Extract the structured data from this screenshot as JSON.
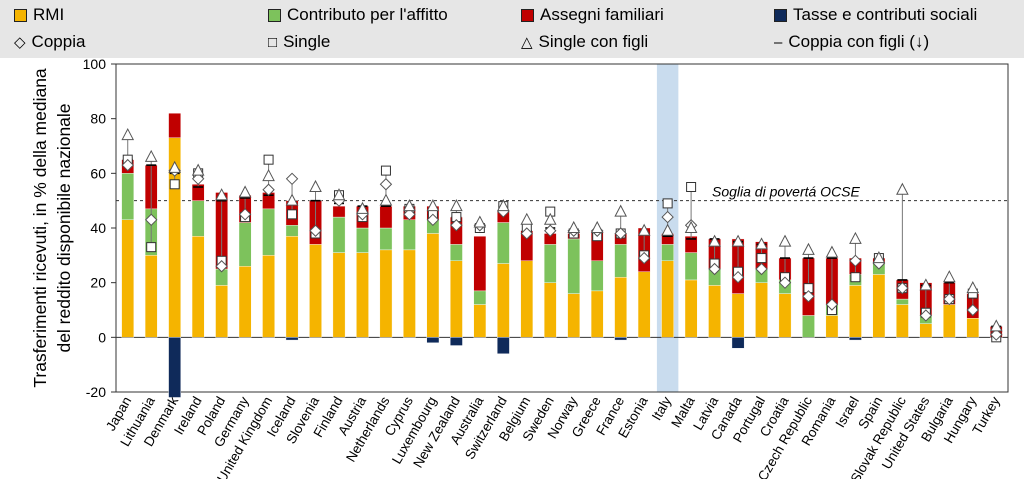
{
  "legend": {
    "items": [
      {
        "label": "RMI",
        "kind": "swatch",
        "color": "#f5b400"
      },
      {
        "label": "Contributo per l'affitto",
        "kind": "swatch",
        "color": "#7dc25c"
      },
      {
        "label": "Assegni familiari",
        "kind": "swatch",
        "color": "#c00000"
      },
      {
        "label": "Tasse e contributi sociali",
        "kind": "swatch",
        "color": "#0f2a5a"
      },
      {
        "label": "Coppia",
        "kind": "symbol",
        "symbol": "◇"
      },
      {
        "label": "Single",
        "kind": "symbol",
        "symbol": "□"
      },
      {
        "label": "Single con figli",
        "kind": "symbol",
        "symbol": "△"
      },
      {
        "label": "Coppia con figli (↓)",
        "kind": "symbol",
        "symbol": "–"
      }
    ]
  },
  "chart_data": {
    "type": "bar",
    "stacked": true,
    "ylabel": "Trasferimenti ricevuti, in % della mediana del reddito disponibile nazionale",
    "ylim": [
      -20,
      100
    ],
    "yticks": [
      -20,
      0,
      20,
      40,
      60,
      80,
      100
    ],
    "threshold": {
      "value": 50,
      "label": "Soglia di povertá OCSE"
    },
    "highlight": "Italy",
    "colors": {
      "RMI": "#f5b400",
      "Contributo per l'affitto": "#7dc25c",
      "Assegni familiari": "#c00000",
      "Tasse e contributi sociali": "#0f2a5a"
    },
    "categories": [
      "Japan",
      "Lithuania",
      "Denmark",
      "Ireland",
      "Poland",
      "Germany",
      "United Kingdom",
      "Iceland",
      "Slovenia",
      "Finland",
      "Austria",
      "Netherlands",
      "Cyprus",
      "Luxembourg",
      "New Zealand",
      "Australia",
      "Switzerland",
      "Belgium",
      "Sweden",
      "Norway",
      "Greece",
      "France",
      "Estonia",
      "Italy",
      "Malta",
      "Latvia",
      "Canada",
      "Portugal",
      "Croatia",
      "Czech Republic",
      "Romania",
      "Israel",
      "Spain",
      "Slovak Republic",
      "United States",
      "Bulgaria",
      "Hungary",
      "Turkey"
    ],
    "series": [
      {
        "name": "RMI",
        "values": [
          43,
          30,
          73,
          37,
          19,
          26,
          30,
          37,
          34,
          31,
          31,
          32,
          32,
          38,
          28,
          12,
          27,
          28,
          20,
          16,
          17,
          22,
          24,
          28,
          21,
          19,
          16,
          20,
          16,
          0,
          8,
          19,
          23,
          12,
          5,
          12,
          7,
          0
        ]
      },
      {
        "name": "Contributo per l'affitto",
        "values": [
          17,
          17,
          0,
          13,
          6,
          16,
          17,
          4,
          0,
          13,
          9,
          8,
          11,
          5,
          6,
          5,
          15,
          0,
          14,
          20,
          11,
          12,
          0,
          6,
          10,
          6,
          0,
          5,
          5,
          8,
          4,
          4,
          4,
          2,
          3,
          0,
          0,
          0
        ]
      },
      {
        "name": "Assegni familiari",
        "values": [
          5,
          16,
          9,
          6,
          28,
          10,
          6,
          9,
          16,
          4,
          8,
          8,
          5,
          5,
          10,
          20,
          4,
          11,
          4,
          2,
          11,
          4,
          16,
          4,
          6,
          11,
          20,
          10,
          8,
          21,
          17,
          6,
          2,
          7,
          12,
          8,
          9,
          4
        ]
      },
      {
        "name": "Tasse e contributi sociali",
        "values": [
          0,
          0,
          -22,
          0,
          0,
          0,
          0,
          -1,
          0,
          0,
          0,
          0,
          0,
          -2,
          -3,
          0,
          -6,
          0,
          0,
          0,
          0,
          -1,
          0,
          0,
          0,
          0,
          -4,
          0,
          0,
          0,
          0,
          -1,
          0,
          0,
          0,
          0,
          0,
          0
        ]
      }
    ],
    "markers": {
      "Coppia": [
        63,
        43,
        61,
        58,
        26,
        45,
        54,
        58,
        39,
        50,
        45,
        56,
        45,
        43,
        41,
        41,
        46,
        38,
        39,
        39,
        39,
        38,
        29,
        44,
        41,
        25,
        22,
        25,
        20,
        15,
        12,
        28,
        27,
        18,
        8,
        14,
        10,
        1
      ],
      "Single": [
        65,
        33,
        56,
        60,
        28,
        44,
        65,
        45,
        38,
        52,
        44,
        61,
        47,
        45,
        44,
        40,
        48,
        40,
        46,
        38,
        37,
        38,
        30,
        49,
        55,
        27,
        24,
        29,
        22,
        18,
        10,
        22,
        29,
        18,
        9,
        14,
        16,
        0
      ],
      "Single con figli": [
        74,
        66,
        62,
        61,
        52,
        53,
        59,
        50,
        55,
        52,
        47,
        50,
        48,
        48,
        48,
        42,
        48,
        43,
        43,
        40,
        40,
        46,
        39,
        39,
        40,
        35,
        35,
        34,
        35,
        32,
        31,
        36,
        29,
        54,
        19,
        22,
        18,
        4
      ],
      "Coppia con figli": [
        65,
        63,
        60,
        55,
        50,
        51,
        52,
        49,
        50,
        49,
        48,
        48,
        47,
        45,
        44,
        41,
        46,
        39,
        40,
        39,
        38,
        38,
        38,
        37,
        36,
        36,
        35,
        34,
        29,
        29,
        29,
        28,
        27,
        21,
        19,
        20,
        15,
        4
      ]
    }
  }
}
